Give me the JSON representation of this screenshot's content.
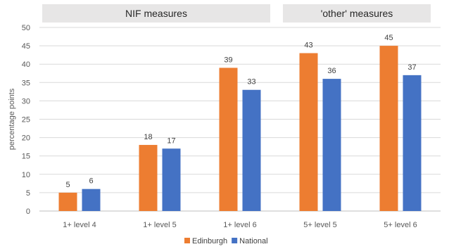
{
  "chart_data": {
    "type": "bar",
    "title": "",
    "xlabel": "",
    "ylabel": "percentage points",
    "ylim": [
      0,
      50
    ],
    "yticks": [
      0,
      5,
      10,
      15,
      20,
      25,
      30,
      35,
      40,
      45,
      50
    ],
    "grid": true,
    "legend_position": "bottom",
    "categories": [
      "1+ level 4",
      "1+ level 5",
      "1+ level 6",
      "5+ level 5",
      "5+ level 6"
    ],
    "series": [
      {
        "name": "Edinburgh",
        "color": "#ED7D31",
        "values": [
          5,
          18,
          39,
          43,
          45
        ],
        "labels": [
          "5",
          "18",
          "39",
          "43",
          "45"
        ]
      },
      {
        "name": "National",
        "color": "#4472C4",
        "values": [
          6,
          17,
          33,
          36,
          37
        ],
        "labels": [
          "6",
          "17",
          "33",
          "36",
          "37"
        ]
      }
    ],
    "category_groups": [
      {
        "label": "NIF measures",
        "categories": [
          "1+ level 4",
          "1+ level 5",
          "1+ level 6"
        ]
      },
      {
        "label": "'other' measures",
        "categories": [
          "5+ level 5",
          "5+ level 6"
        ]
      }
    ],
    "group_header_color": "#E7E6E6"
  }
}
